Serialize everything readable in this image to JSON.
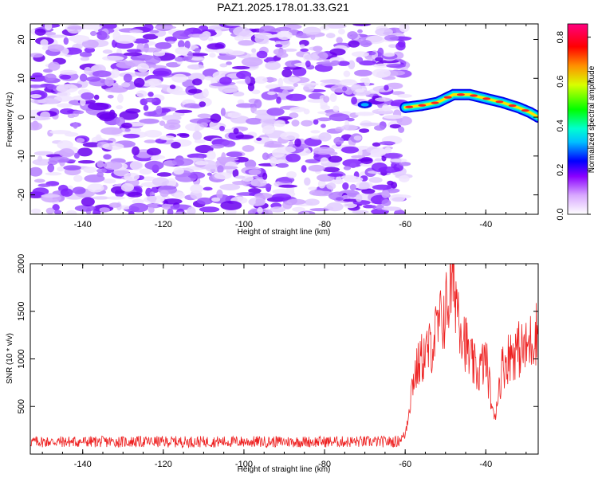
{
  "title": "PAZ1.2025.178.01.33.G21",
  "chart_data": [
    {
      "type": "heatmap",
      "xlabel": "Height of straight line (km)",
      "ylabel": "Frequency (Hz)",
      "xlim": [
        -153,
        -27
      ],
      "ylim": [
        -25,
        24
      ],
      "xticks": [
        -140,
        -120,
        -100,
        -80,
        -60,
        -40
      ],
      "yticks": [
        -20,
        -10,
        0,
        10,
        20
      ],
      "colorbar": {
        "label": "Normalized spectral amplitude",
        "ticks": [
          "0.0",
          "0.2",
          "0.4",
          "0.6",
          "0.8"
        ],
        "range": [
          0,
          0.86
        ]
      },
      "noise_region_x": [
        -152,
        -60
      ],
      "peak_track": [
        {
          "x": -60,
          "y": 2.5
        },
        {
          "x": -56,
          "y": 3.0
        },
        {
          "x": -52,
          "y": 3.8
        },
        {
          "x": -48,
          "y": 5.8
        },
        {
          "x": -44,
          "y": 5.8
        },
        {
          "x": -40,
          "y": 4.8
        },
        {
          "x": -36,
          "y": 3.8
        },
        {
          "x": -32,
          "y": 2.5
        },
        {
          "x": -29,
          "y": 1.2
        },
        {
          "x": -27,
          "y": 0.0
        }
      ],
      "isolated_peak": {
        "x": -70,
        "y": 3.2
      }
    },
    {
      "type": "line",
      "xlabel": "Height of straight line (km)",
      "ylabel": "SNR (10 * v/v)",
      "xlim": [
        -153,
        -27
      ],
      "ylim": [
        0,
        2000
      ],
      "xticks": [
        -140,
        -120,
        -100,
        -80,
        -60,
        -40
      ],
      "yticks": [
        500,
        1000,
        1500,
        2000
      ],
      "color": "#ee2222",
      "envelope": [
        {
          "x": -153,
          "y": 130
        },
        {
          "x": -62,
          "y": 130
        },
        {
          "x": -60,
          "y": 200
        },
        {
          "x": -58,
          "y": 800
        },
        {
          "x": -56,
          "y": 1000
        },
        {
          "x": -54,
          "y": 1100
        },
        {
          "x": -52,
          "y": 1300
        },
        {
          "x": -50,
          "y": 1500
        },
        {
          "x": -48,
          "y": 1850
        },
        {
          "x": -46,
          "y": 1350
        },
        {
          "x": -44,
          "y": 1000
        },
        {
          "x": -42,
          "y": 850
        },
        {
          "x": -40,
          "y": 1000
        },
        {
          "x": -39,
          "y": 700
        },
        {
          "x": -38,
          "y": 350
        },
        {
          "x": -36,
          "y": 900
        },
        {
          "x": -34,
          "y": 1050
        },
        {
          "x": -32,
          "y": 1100
        },
        {
          "x": -30,
          "y": 1100
        },
        {
          "x": -28,
          "y": 1250
        },
        {
          "x": -27,
          "y": 1300
        }
      ]
    }
  ]
}
